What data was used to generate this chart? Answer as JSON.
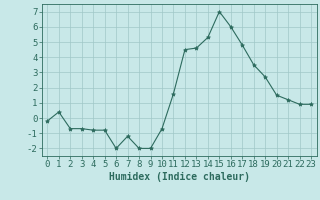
{
  "x": [
    0,
    1,
    2,
    3,
    4,
    5,
    6,
    7,
    8,
    9,
    10,
    11,
    12,
    13,
    14,
    15,
    16,
    17,
    18,
    19,
    20,
    21,
    22,
    23
  ],
  "y": [
    -0.2,
    0.4,
    -0.7,
    -0.7,
    -0.8,
    -0.8,
    -2.0,
    -1.2,
    -2.0,
    -2.0,
    -0.7,
    1.6,
    4.5,
    4.6,
    5.3,
    7.0,
    6.0,
    4.8,
    3.5,
    2.7,
    1.5,
    1.2,
    0.9,
    0.9
  ],
  "line_color": "#2d6b5e",
  "marker": "*",
  "marker_size": 3,
  "bg_color": "#c8e8e8",
  "grid_color": "#a0c8c8",
  "xlabel": "Humidex (Indice chaleur)",
  "ylim": [
    -2.5,
    7.5
  ],
  "xlim": [
    -0.5,
    23.5
  ],
  "yticks": [
    -2,
    -1,
    0,
    1,
    2,
    3,
    4,
    5,
    6,
    7
  ],
  "xticks": [
    0,
    1,
    2,
    3,
    4,
    5,
    6,
    7,
    8,
    9,
    10,
    11,
    12,
    13,
    14,
    15,
    16,
    17,
    18,
    19,
    20,
    21,
    22,
    23
  ],
  "tick_color": "#2d6b5e",
  "label_color": "#2d6b5e",
  "font_size_label": 7,
  "font_size_tick": 6.5
}
